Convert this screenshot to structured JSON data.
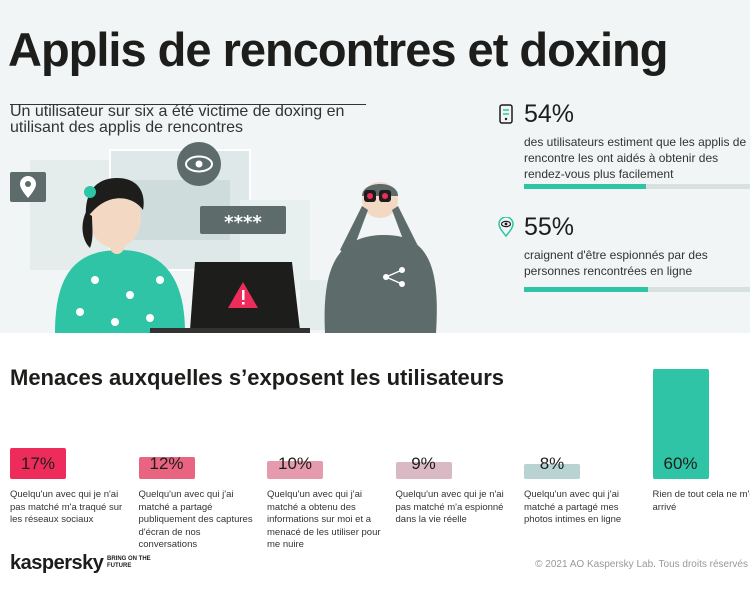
{
  "header": {
    "title": "Applis de rencontres et doxing",
    "subtitle": "Un utilisateur sur six a été victime de doxing en utilisant des applis de rencontres"
  },
  "stats": [
    {
      "value": "54%",
      "fraction": 0.54,
      "description": "des utilisateurs estiment que les applis de rencontre les ont aidés à obtenir des rendez-vous plus facilement",
      "icon": "phone-app-icon"
    },
    {
      "value": "55%",
      "fraction": 0.55,
      "description": "craignent d'être espionnés par des personnes rencontrées en ligne",
      "icon": "eye-pin-icon"
    }
  ],
  "illustration": {
    "password_mask": "****"
  },
  "chart_data": {
    "type": "bar",
    "title": "Menaces auxquelles s’exposent les utilisateurs",
    "categories": [
      "Quelqu'un avec qui je n'ai pas matché m'a traqué sur les réseaux sociaux",
      "Quelqu'un avec qui j'ai matché a partagé publiquement des captures d'écran de nos conversations",
      "Quelqu'un avec qui j'ai matché a obtenu des informations sur moi et a menacé de les utiliser pour me nuire",
      "Quelqu'un avec qui je n'ai pas matché m'a espionné dans la vie réelle",
      "Quelqu'un avec qui j'ai matché a partagé mes photos intimes en ligne",
      "Rien de tout cela ne m'est arrivé"
    ],
    "values": [
      17,
      12,
      10,
      9,
      8,
      60
    ],
    "value_labels": [
      "17%",
      "12%",
      "10%",
      "9%",
      "8%",
      "60%"
    ],
    "colors": [
      "#ee2c5b",
      "#e96480",
      "#e69aae",
      "#d8b9c4",
      "#b8d3d1",
      "#2ec4a5"
    ]
  },
  "footer": {
    "brand": "kaspersky",
    "tagline": "BRING ON THE FUTURE",
    "copyright": "© 2021 AO Kaspersky Lab. Tous droits réservés"
  }
}
